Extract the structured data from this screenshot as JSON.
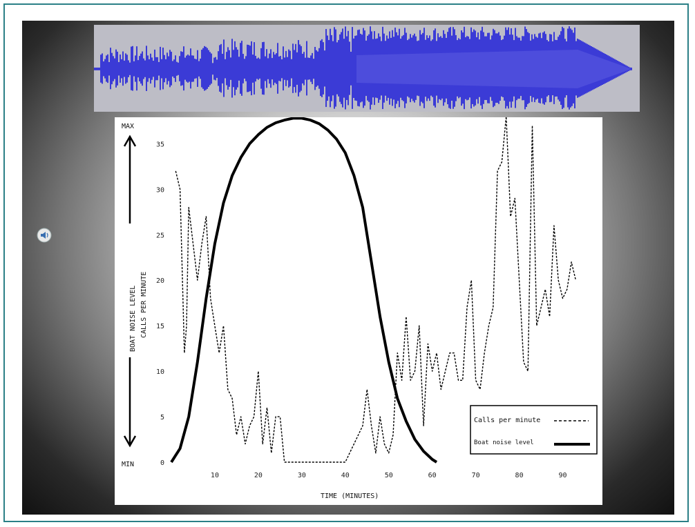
{
  "waveform": {
    "color": "#3b3bd6",
    "background": "#bdbdc6",
    "icon": "audio-waveform"
  },
  "speaker": {
    "icon": "speaker-icon"
  },
  "chart_data": {
    "type": "line",
    "title": "",
    "xlabel": "TIME (MINUTES)",
    "ylabel": "CALLS PER MINUTE",
    "side_label": "BOAT NOISE LEVEL",
    "max_label": "MAX",
    "min_label": "MIN",
    "xlim": [
      0,
      95
    ],
    "ylim": [
      0,
      37
    ],
    "x_ticks": [
      10,
      20,
      30,
      40,
      50,
      60,
      70,
      80,
      90
    ],
    "x_tick_labels": [
      "10",
      "20",
      "30",
      "40",
      "50",
      "60",
      "70",
      "80",
      "90"
    ],
    "y_ticks": [
      0,
      5,
      10,
      15,
      20,
      25,
      30,
      35
    ],
    "y_tick_labels": [
      "0",
      "5",
      "10",
      "15",
      "20",
      "25",
      "30",
      "35"
    ],
    "legend_position": "bottom-right",
    "grid": false,
    "series": [
      {
        "name": "Calls per minute",
        "style": "dashed",
        "x": [
          1,
          2,
          3,
          3.5,
          4,
          5,
          6,
          7,
          8,
          9,
          10,
          11,
          12,
          13,
          14,
          15,
          16,
          17,
          18,
          19,
          20,
          21,
          22,
          23,
          24,
          25,
          26,
          27,
          28,
          29,
          30,
          35,
          40,
          42,
          44,
          45,
          46,
          47,
          48,
          49,
          50,
          51,
          52,
          53,
          54,
          55,
          56,
          57,
          58,
          59,
          60,
          61,
          62,
          63,
          64,
          65,
          66,
          67,
          68,
          69,
          70,
          71,
          72,
          73,
          74,
          75,
          76,
          77,
          78,
          79,
          80,
          81,
          82,
          83,
          84,
          85,
          86,
          87,
          88,
          89,
          90,
          91,
          92,
          93
        ],
        "values": [
          32,
          30,
          12,
          15,
          28,
          24,
          20,
          24,
          27,
          18,
          15,
          12,
          15,
          8,
          7,
          3,
          5,
          2,
          4,
          5,
          10,
          2,
          6,
          1,
          5,
          5,
          0,
          0,
          0,
          0,
          0,
          0,
          0,
          2,
          4,
          8,
          4,
          1,
          5,
          2,
          1,
          3,
          12,
          9,
          16,
          9,
          10,
          15,
          4,
          13,
          10,
          12,
          8,
          10,
          12,
          12,
          9,
          9,
          17,
          20,
          9,
          8,
          12,
          15,
          17,
          32,
          33,
          38,
          27,
          29,
          20,
          11,
          10,
          37,
          15,
          17,
          19,
          16,
          26,
          20,
          18,
          19,
          22,
          20
        ]
      },
      {
        "name": "Boat noise level",
        "style": "solid-thick",
        "x": [
          0,
          2,
          4,
          6,
          8,
          10,
          12,
          14,
          16,
          18,
          20,
          22,
          24,
          26,
          28,
          30,
          32,
          34,
          36,
          38,
          40,
          42,
          44,
          46,
          48,
          50,
          52,
          54,
          56,
          58,
          60,
          61
        ],
        "values": [
          0,
          1.5,
          5,
          11,
          18,
          24,
          28.5,
          31.5,
          33.5,
          35,
          36,
          36.8,
          37.3,
          37.6,
          37.8,
          37.8,
          37.6,
          37.2,
          36.5,
          35.5,
          34,
          31.5,
          28,
          22,
          16,
          11,
          7,
          4.5,
          2.5,
          1.2,
          0.3,
          0
        ]
      }
    ]
  }
}
